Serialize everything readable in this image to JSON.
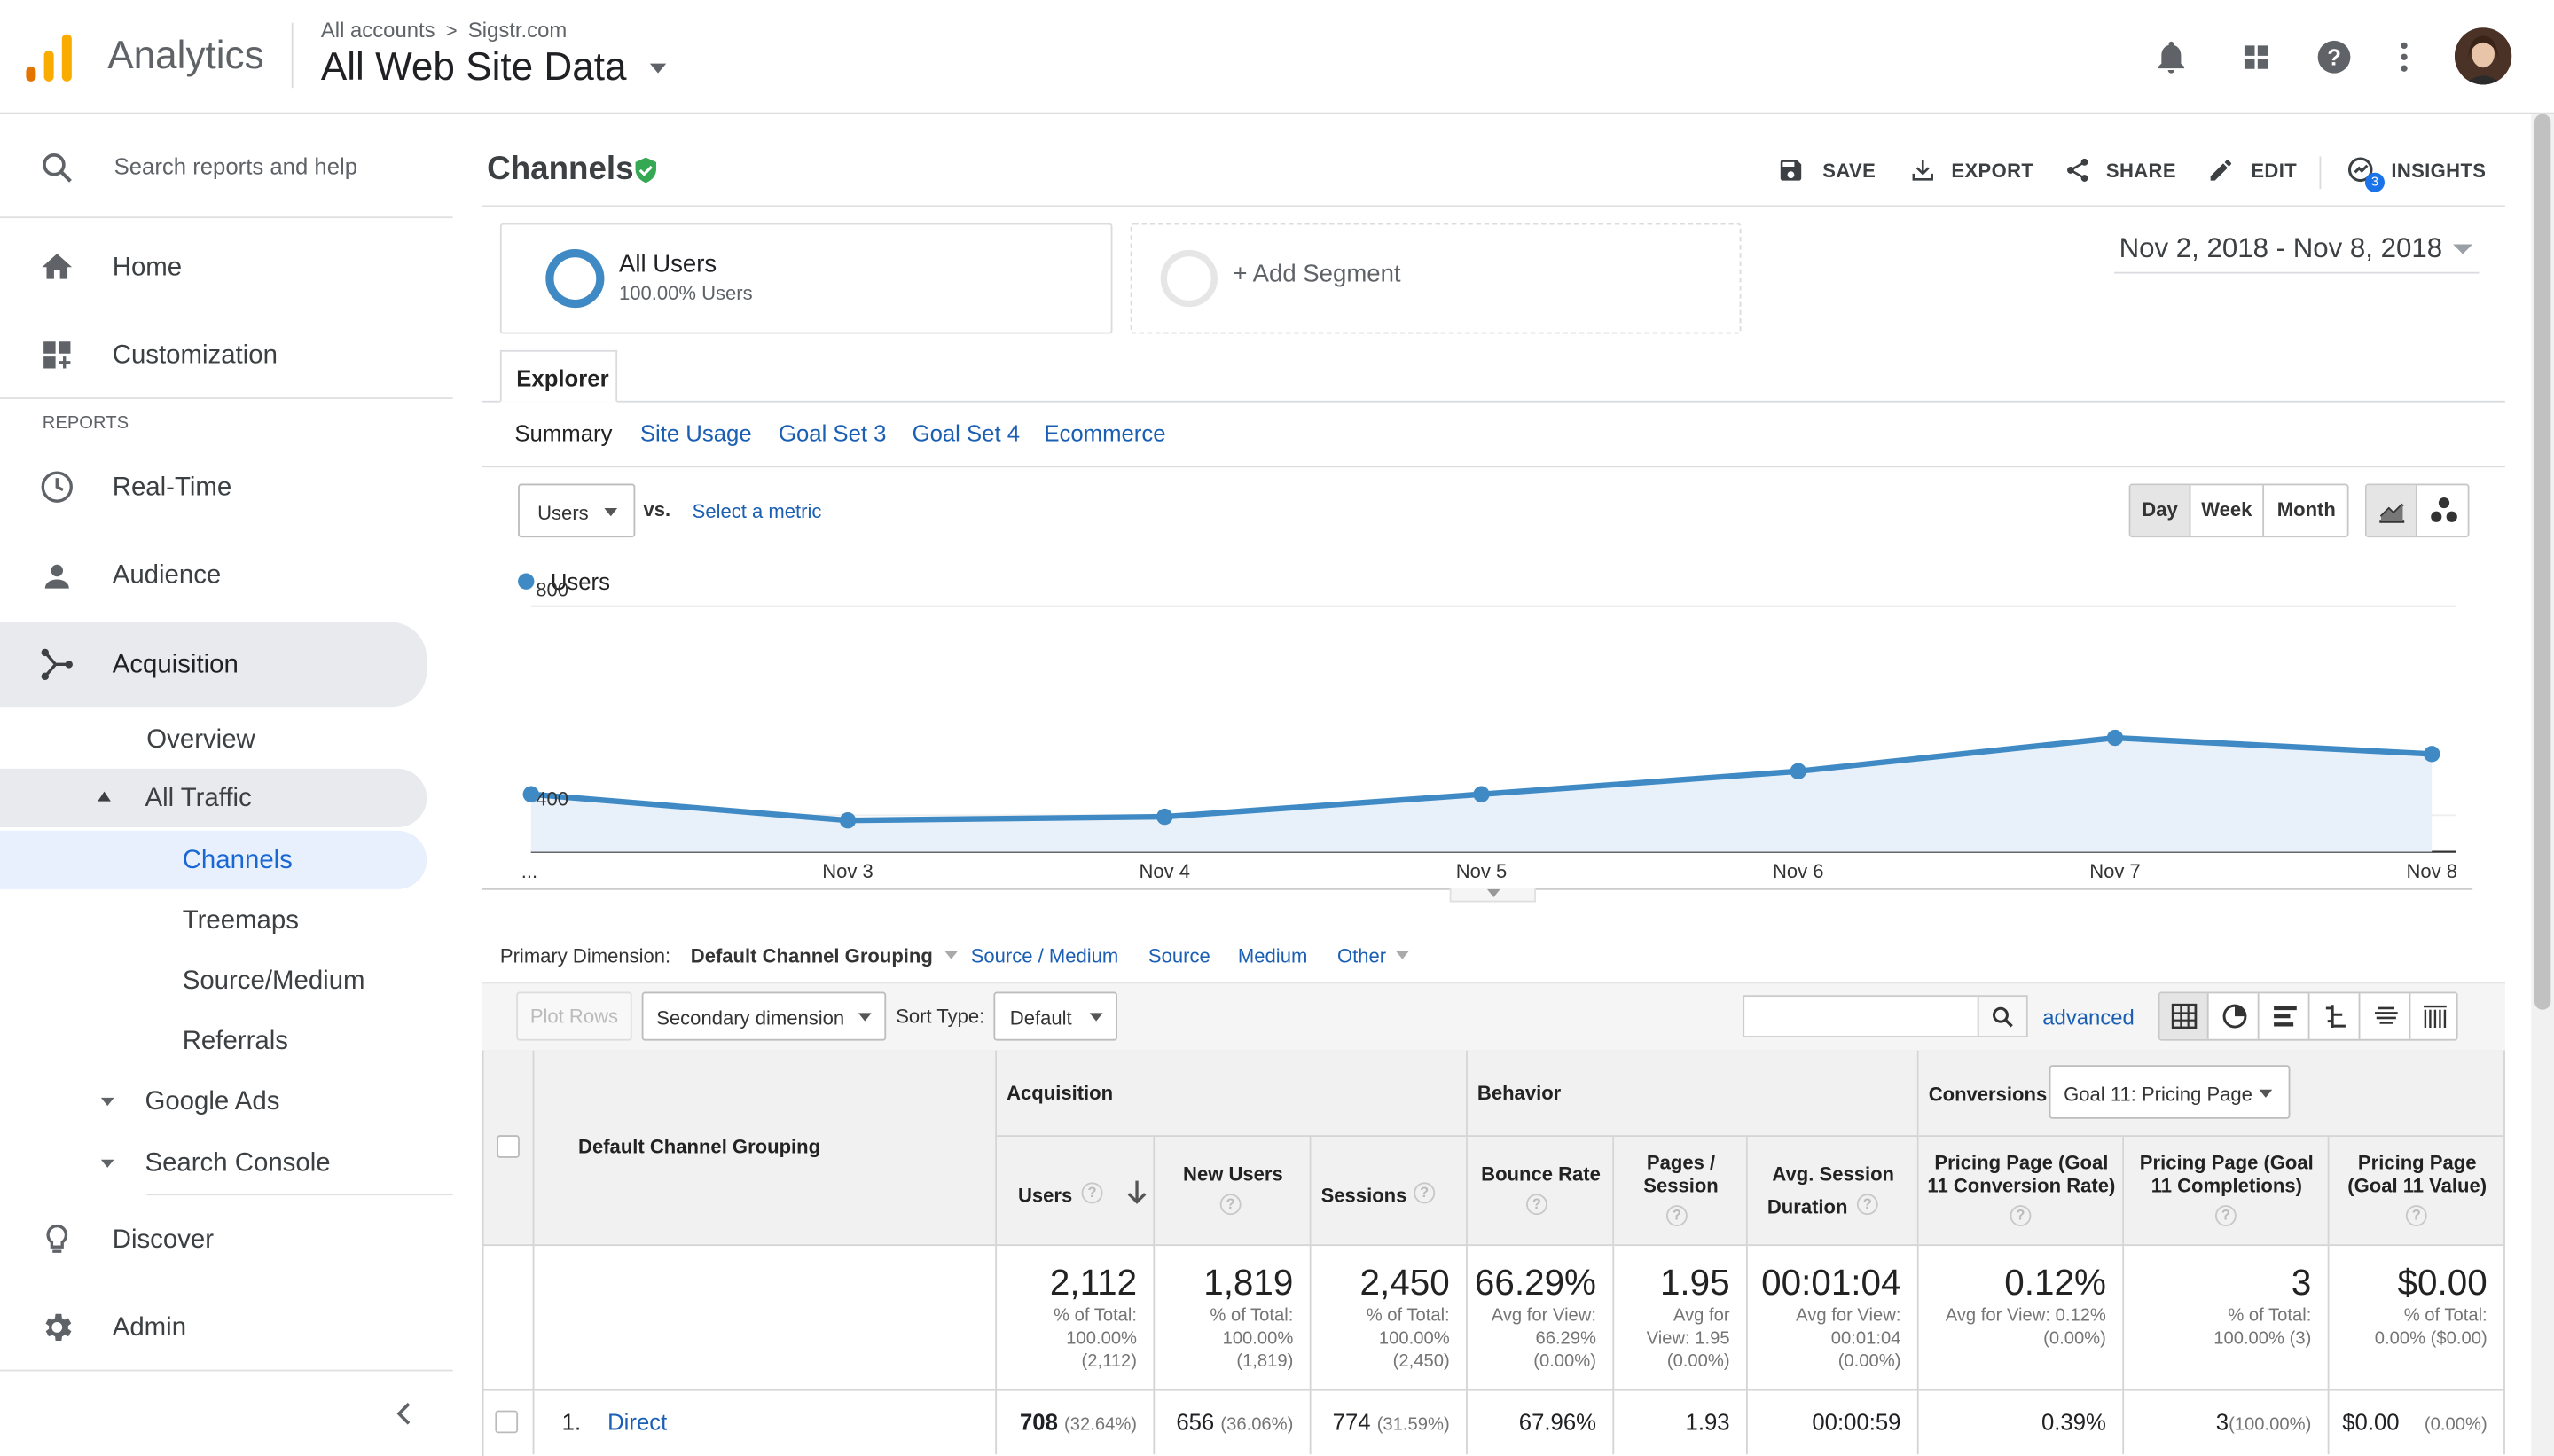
{
  "header": {
    "app_name": "Analytics",
    "breadcrumb_account": "All accounts",
    "breadcrumb_property": "Sigstr.com",
    "view_name": "All Web Site Data"
  },
  "sidebar": {
    "search_placeholder": "Search reports and help",
    "home": "Home",
    "customization": "Customization",
    "reports_heading": "REPORTS",
    "realtime": "Real-Time",
    "audience": "Audience",
    "acquisition": "Acquisition",
    "overview": "Overview",
    "all_traffic": "All Traffic",
    "channels": "Channels",
    "treemaps": "Treemaps",
    "source_medium": "Source/Medium",
    "referrals": "Referrals",
    "google_ads": "Google Ads",
    "search_console": "Search Console",
    "discover": "Discover",
    "admin": "Admin"
  },
  "report": {
    "title": "Channels",
    "actions": {
      "save": "SAVE",
      "export": "EXPORT",
      "share": "SHARE",
      "edit": "EDIT",
      "insights": "INSIGHTS",
      "insights_badge": "3"
    },
    "segment": {
      "name": "All Users",
      "detail": "100.00% Users",
      "add": "+ Add Segment"
    },
    "date_range": "Nov 2, 2018 - Nov 8, 2018",
    "explorer_tab": "Explorer",
    "subtabs": [
      "Summary",
      "Site Usage",
      "Goal Set 3",
      "Goal Set 4",
      "Ecommerce"
    ],
    "metric_select": "Users",
    "vs": "vs.",
    "select_metric": "Select a metric",
    "granularity": [
      "Day",
      "Week",
      "Month"
    ]
  },
  "chart_data": {
    "type": "line",
    "series": [
      {
        "name": "Users",
        "values": [
          440,
          390,
          397,
          440,
          484,
          548,
          517
        ]
      }
    ],
    "categories": [
      "...",
      "Nov 3",
      "Nov 4",
      "Nov 5",
      "Nov 6",
      "Nov 7",
      "Nov 8"
    ],
    "y_ticks": [
      800,
      400
    ],
    "ylim": [
      330,
      900
    ],
    "color": "#3f8ac4"
  },
  "dimensions": {
    "label": "Primary Dimension:",
    "selected": "Default Channel Grouping",
    "others": [
      "Source / Medium",
      "Source",
      "Medium",
      "Other"
    ]
  },
  "controls": {
    "plot_rows": "Plot Rows",
    "secondary": "Secondary dimension",
    "sort_label": "Sort Type:",
    "sort_value": "Default",
    "advanced": "advanced"
  },
  "table": {
    "dimension_header": "Default Channel Grouping",
    "groups": {
      "acquisition": "Acquisition",
      "behavior": "Behavior",
      "conversions": "Conversions",
      "goal_select": "Goal 11: Pricing Page"
    },
    "columns": {
      "users": "Users",
      "new_users": "New Users",
      "sessions": "Sessions",
      "bounce": "Bounce Rate",
      "pages": "Pages / Session",
      "duration_1": "Avg. Session",
      "duration_2": "Duration",
      "conv_rate": "Pricing Page (Goal 11 Conversion Rate)",
      "completions": "Pricing Page (Goal 11 Completions)",
      "value": "Pricing Page (Goal 11 Value)"
    },
    "totals": {
      "users": {
        "v": "2,112",
        "l1": "% of Total:",
        "l2": "100.00%",
        "l3": "(2,112)"
      },
      "new_users": {
        "v": "1,819",
        "l1": "% of Total:",
        "l2": "100.00%",
        "l3": "(1,819)"
      },
      "sessions": {
        "v": "2,450",
        "l1": "% of Total:",
        "l2": "100.00%",
        "l3": "(2,450)"
      },
      "bounce": {
        "v": "66.29%",
        "l1": "Avg for View:",
        "l2": "66.29%",
        "l3": "(0.00%)"
      },
      "pages": {
        "v": "1.95",
        "l1": "Avg for",
        "l2": "View: 1.95",
        "l3": "(0.00%)"
      },
      "duration": {
        "v": "00:01:04",
        "l1": "Avg for View:",
        "l2": "00:01:04",
        "l3": "(0.00%)"
      },
      "conv_rate": {
        "v": "0.12%",
        "l1": "Avg for View: 0.12%",
        "l2": "(0.00%)"
      },
      "completions": {
        "v": "3",
        "l1": "% of Total:",
        "l2": "100.00% (3)"
      },
      "value": {
        "v": "$0.00",
        "l1": "% of Total:",
        "l2": "0.00% ($0.00)"
      }
    },
    "rows": [
      {
        "index": "1.",
        "name": "Direct",
        "users": "708",
        "users_pct": "(32.64%)",
        "new_users": "656",
        "new_users_pct": "(36.06%)",
        "sessions": "774",
        "sessions_pct": "(31.59%)",
        "bounce": "67.96%",
        "pages": "1.93",
        "duration": "00:00:59",
        "conv_rate": "0.39%",
        "completions": "3",
        "completions_pct": "(100.00%)",
        "value": "$0.00",
        "value_pct": "(0.00%)"
      }
    ]
  }
}
